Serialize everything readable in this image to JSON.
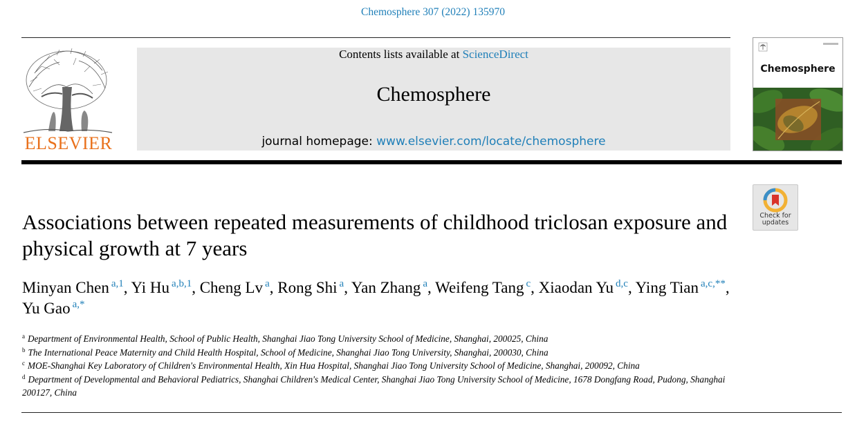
{
  "citation": "Chemosphere 307 (2022) 135970",
  "publisher": {
    "wordmark": "ELSEVIER"
  },
  "banner": {
    "contents_prefix": "Contents lists available at ",
    "contents_link": "ScienceDirect",
    "journal_name": "Chemosphere",
    "homepage_prefix": "journal homepage: ",
    "homepage_link": "www.elsevier.com/locate/chemosphere"
  },
  "cover": {
    "title": "Chemosphere"
  },
  "check_updates": {
    "line1": "Check for",
    "line2": "updates"
  },
  "title": "Associations between repeated measurements of childhood triclosan exposure and physical growth at 7 years",
  "authors": [
    {
      "name": "Minyan Chen",
      "sup": "a,1"
    },
    {
      "name": "Yi Hu",
      "sup": "a,b,1"
    },
    {
      "name": "Cheng Lv",
      "sup": "a"
    },
    {
      "name": "Rong Shi",
      "sup": "a"
    },
    {
      "name": "Yan Zhang",
      "sup": "a"
    },
    {
      "name": "Weifeng Tang",
      "sup": "c"
    },
    {
      "name": "Xiaodan Yu",
      "sup": "d,c"
    },
    {
      "name": "Ying Tian",
      "sup": "a,c,**"
    },
    {
      "name": "Yu Gao",
      "sup": "a,*"
    }
  ],
  "affiliations": [
    {
      "label": "a",
      "text": "Department of Environmental Health, School of Public Health, Shanghai Jiao Tong University School of Medicine, Shanghai, 200025, China"
    },
    {
      "label": "b",
      "text": "The International Peace Maternity and Child Health Hospital, School of Medicine, Shanghai Jiao Tong University, Shanghai, 200030, China"
    },
    {
      "label": "c",
      "text": "MOE-Shanghai Key Laboratory of Children's Environmental Health, Xin Hua Hospital, Shanghai Jiao Tong University School of Medicine, Shanghai, 200092, China"
    },
    {
      "label": "d",
      "text": "Department of Developmental and Behavioral Pediatrics, Shanghai Children's Medical Center, Shanghai Jiao Tong University School of Medicine, 1678 Dongfang Road, Pudong, Shanghai 200127, China"
    }
  ],
  "colors": {
    "link": "#1f7fb8",
    "elsevier_orange": "#e9711c",
    "banner_bg": "#e7e7e7"
  }
}
